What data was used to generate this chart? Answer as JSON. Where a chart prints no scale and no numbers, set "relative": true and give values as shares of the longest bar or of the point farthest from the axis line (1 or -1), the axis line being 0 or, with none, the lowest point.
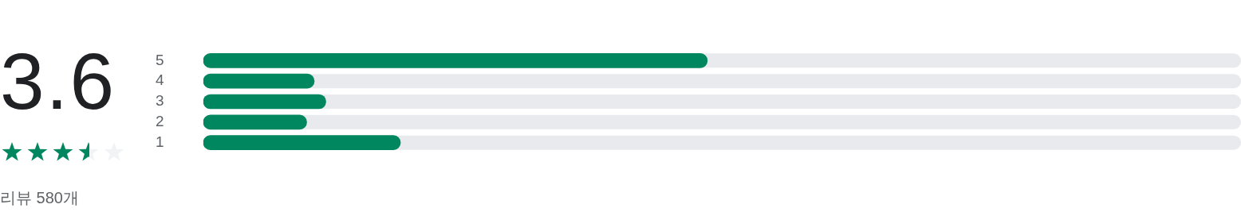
{
  "chart_data": {
    "type": "bar",
    "orientation": "horizontal",
    "relative": true,
    "categories": [
      "5",
      "4",
      "3",
      "2",
      "1"
    ],
    "values": [
      1,
      0.22,
      0.243,
      0.205,
      0.391
    ],
    "color": "#01875f",
    "annotations": [
      "3.6",
      "리뷰 580개"
    ]
  }
}
